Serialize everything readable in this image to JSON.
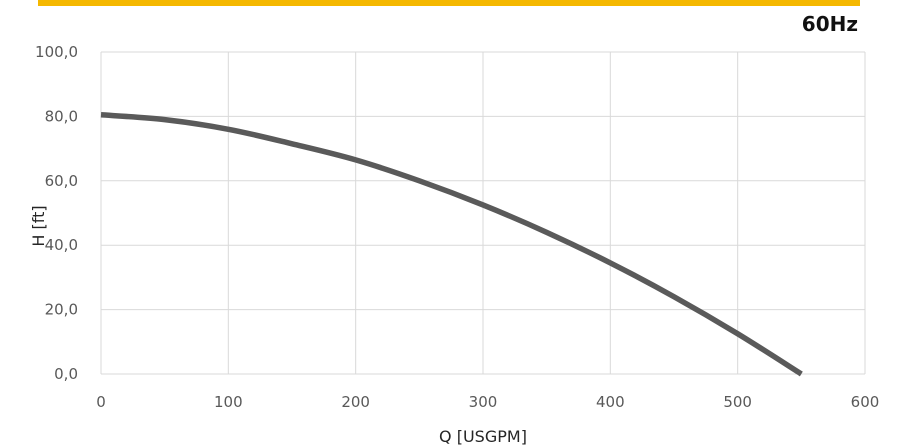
{
  "frequency_label": "60Hz",
  "accent_color": "#f5b800",
  "curve_color": "#5a5a5a",
  "grid_color": "#d9d9d9",
  "chart_data": {
    "type": "line",
    "title": "",
    "xlabel": "Q [USGPM]",
    "ylabel": "H [ft]",
    "xlim": [
      0,
      600
    ],
    "ylim": [
      0,
      100
    ],
    "xticks": [
      "0",
      "100",
      "200",
      "300",
      "400",
      "500",
      "600"
    ],
    "yticks": [
      "0,0",
      "20,0",
      "40,0",
      "60,0",
      "80,0",
      "100,0"
    ],
    "grid": true,
    "legend": "none",
    "series": [
      {
        "x": [
          0,
          50,
          100,
          150,
          200,
          250,
          300,
          350,
          400,
          450,
          500,
          550
        ],
        "values": [
          80.5,
          79.0,
          76.0,
          71.5,
          66.5,
          60.0,
          52.5,
          44.0,
          34.5,
          24.0,
          12.5,
          0.0
        ]
      }
    ]
  }
}
